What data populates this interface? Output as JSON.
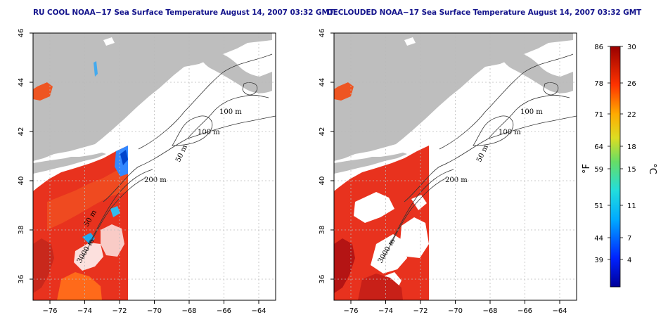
{
  "panels": [
    {
      "id": "left",
      "title": "RU COOL NOAA−17 Sea Surface Temperature August 14, 2007 03:32 GMT",
      "contours": [
        {
          "label": "100 m"
        },
        {
          "label": "100 m"
        },
        {
          "label": "50 m"
        },
        {
          "label": "200 m"
        },
        {
          "label": "50 m"
        },
        {
          "label": "3000 m"
        }
      ]
    },
    {
      "id": "right",
      "title": "DECLOUDED NOAA−17 Sea Surface Temperature August 14, 2007 03:32 GMT",
      "contours": [
        {
          "label": "100 m"
        },
        {
          "label": "100 m"
        },
        {
          "label": "50 m"
        },
        {
          "label": "200 m"
        },
        {
          "label": "3000 m"
        }
      ]
    }
  ],
  "axes": {
    "lon_ticks": [
      "−76",
      "−74",
      "−72",
      "−70",
      "−68",
      "−66",
      "−64"
    ],
    "lat_ticks": [
      "46",
      "44",
      "42",
      "40",
      "38",
      "36"
    ],
    "lon_range": [
      -77.0,
      -63.0
    ],
    "lat_range": [
      35.0,
      46.0
    ]
  },
  "colorbar": {
    "fahrenheit_ticks": [
      "86",
      "78",
      "71",
      "64",
      "59",
      "51",
      "44",
      "39"
    ],
    "celsius_ticks": [
      "30",
      "26",
      "22",
      "18",
      "15",
      "11",
      "7",
      "4"
    ],
    "fahrenheit_unit": "°F",
    "celsius_unit": "°C",
    "range_c": [
      0,
      30
    ]
  },
  "colors": {
    "land": "#bebebe",
    "ocean_nodata": "#ffffff",
    "sst_warm": "#e8321e",
    "sst_hot": "#b41414",
    "title": "#14148c",
    "grid": "#bbbbbb"
  }
}
